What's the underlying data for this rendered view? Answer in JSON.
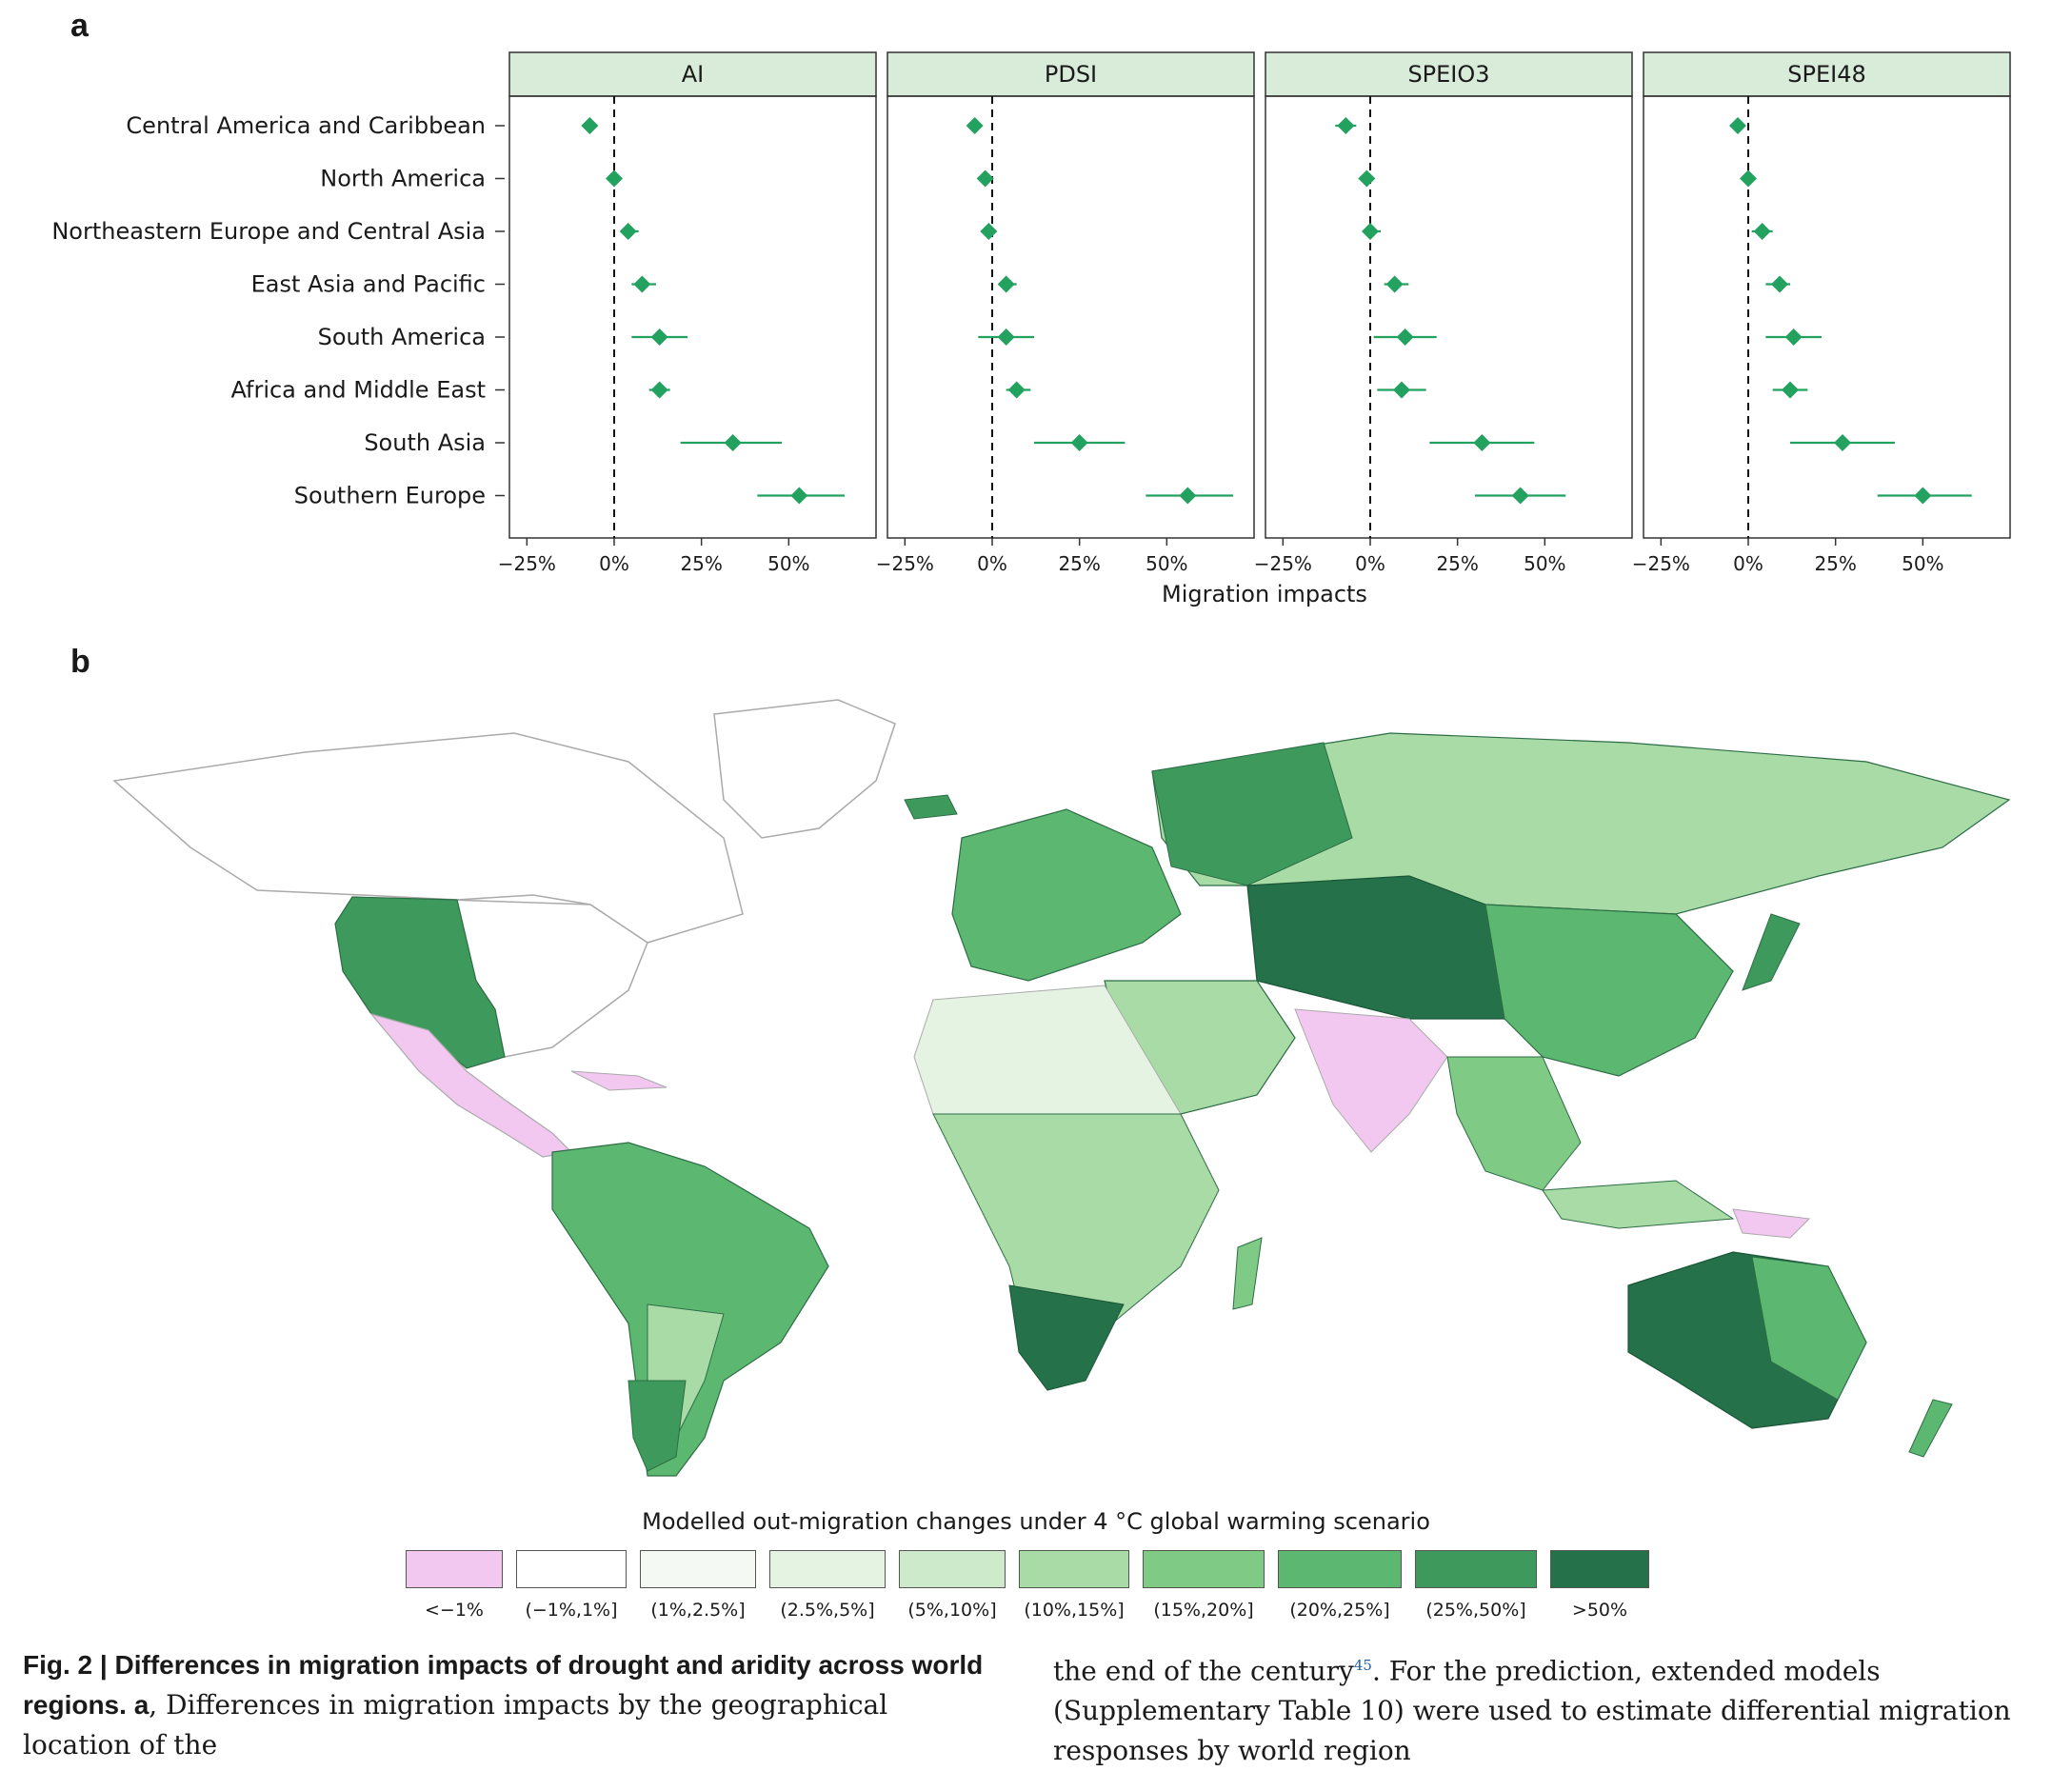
{
  "panel_a": {
    "letter": "a"
  },
  "panel_b": {
    "letter": "b"
  },
  "chart_data": {
    "type": "scatter",
    "subtype": "faceted point-range (forest) plot",
    "facets": [
      "AI",
      "PDSI",
      "SPEIO3",
      "SPEI48"
    ],
    "categories": [
      "Central America and Caribbean",
      "North America",
      "Northeastern Europe and Central Asia",
      "East Asia and Pacific",
      "South America",
      "Africa and Middle East",
      "South Asia",
      "Southern Europe"
    ],
    "xlabel": "Migration impacts",
    "x_ticks": [
      "−25%",
      "0%",
      "25%",
      "50%"
    ],
    "xlim": [
      -30,
      75
    ],
    "reference_line": 0,
    "marker_color": "#23a15f",
    "series": [
      {
        "facet": "AI",
        "estimate": [
          -7,
          0,
          4,
          8,
          13,
          13,
          34,
          53
        ],
        "lower": [
          -9,
          -1,
          2,
          5,
          5,
          10,
          19,
          41
        ],
        "upper": [
          -5,
          1,
          7,
          12,
          21,
          16,
          48,
          66
        ]
      },
      {
        "facet": "PDSI",
        "estimate": [
          -5,
          -2,
          -1,
          4,
          4,
          7,
          25,
          56
        ],
        "lower": [
          -7,
          -3,
          -3,
          2,
          -4,
          4,
          12,
          44
        ],
        "upper": [
          -3,
          -1,
          1,
          7,
          12,
          11,
          38,
          69
        ]
      },
      {
        "facet": "SPEIO3",
        "estimate": [
          -7,
          -1,
          0,
          7,
          10,
          9,
          32,
          43
        ],
        "lower": [
          -10,
          -2,
          -2,
          4,
          1,
          2,
          17,
          30
        ],
        "upper": [
          -4,
          0,
          3,
          11,
          19,
          16,
          47,
          56
        ]
      },
      {
        "facet": "SPEI48",
        "estimate": [
          -3,
          0,
          4,
          9,
          13,
          12,
          27,
          50
        ],
        "lower": [
          -5,
          -1,
          1,
          5,
          5,
          7,
          12,
          37
        ],
        "upper": [
          -1,
          1,
          7,
          12,
          21,
          17,
          42,
          64
        ]
      }
    ]
  },
  "map": {
    "legend_title": "Modelled out-migration changes under 4 °C global warming scenario",
    "legend": [
      {
        "label": "<−1%",
        "color": "#f2c7f0"
      },
      {
        "label": "(−1%,1%]",
        "color": "#ffffff"
      },
      {
        "label": "(1%,2.5%]",
        "color": "#f4faf3"
      },
      {
        "label": "(2.5%,5%]",
        "color": "#e4f3e2"
      },
      {
        "label": "(5%,10%]",
        "color": "#cdeacb"
      },
      {
        "label": "(10%,15%]",
        "color": "#a9dba7"
      },
      {
        "label": "(15%,20%]",
        "color": "#7fca85"
      },
      {
        "label": "(20%,25%]",
        "color": "#5cb871"
      },
      {
        "label": "(25%,50%]",
        "color": "#3d9a5c"
      },
      {
        "label": ">50%",
        "color": "#25714a"
      }
    ]
  },
  "caption": {
    "left_bold": "Fig. 2 | Differences in migration impacts of drought and aridity across world regions. a",
    "left_text": ", Differences in migration impacts by the geographical location of the",
    "right_text_1": "the end of the century",
    "right_cite": "45",
    "right_text_2": ". For the prediction, extended models (Supplementary Table 10) were used to estimate differential migration responses by world region"
  }
}
